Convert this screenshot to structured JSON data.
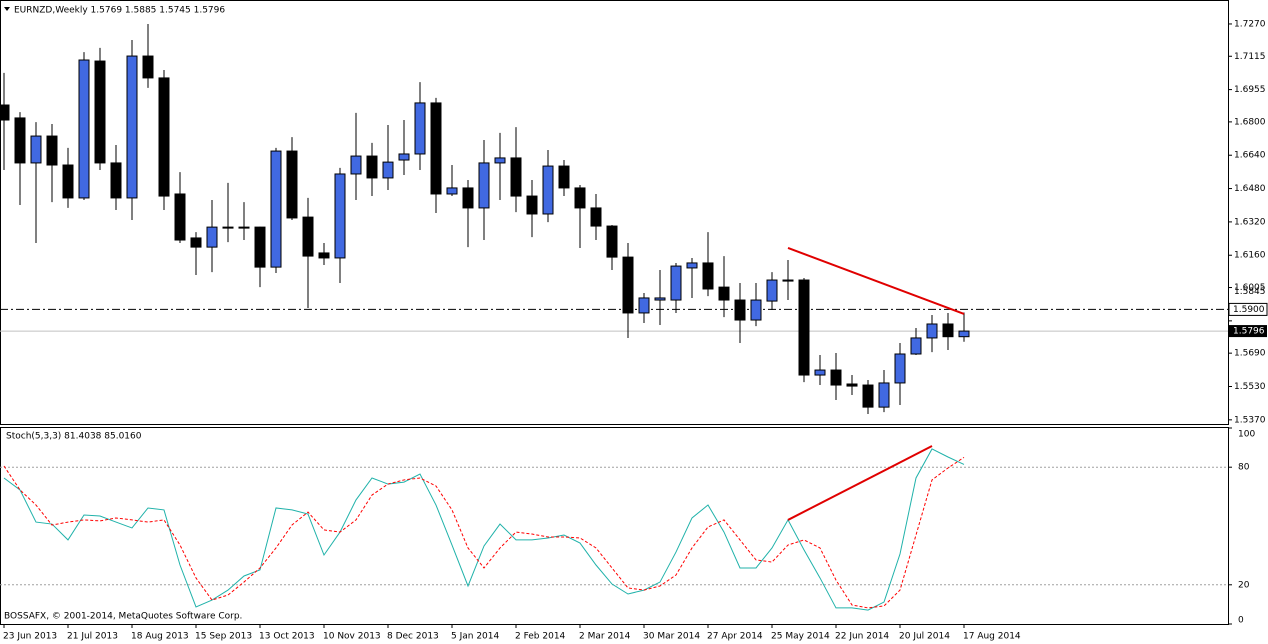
{
  "chart_data": [
    {
      "type": "candlestick",
      "title": "EURNZD,Weekly  1.5769 1.5885 1.5745 1.5796",
      "categories": [
        "23 Jun 2013",
        null,
        null,
        null,
        "21 Jul 2013",
        null,
        null,
        null,
        "18 Aug 2013",
        null,
        null,
        null,
        "15 Sep 2013",
        null,
        null,
        null,
        "13 Oct 2013",
        null,
        null,
        null,
        "10 Nov 2013",
        null,
        null,
        null,
        "8 Dec 2013",
        null,
        null,
        null,
        "5 Jan 2014",
        null,
        null,
        null,
        "2 Feb 2014",
        null,
        null,
        null,
        "2 Mar 2014",
        null,
        null,
        null,
        "30 Mar 2014",
        null,
        null,
        null,
        "27 Apr 2014",
        null,
        null,
        null,
        "25 May 2014",
        null,
        null,
        null,
        "22 Jun 2014",
        null,
        null,
        null,
        "20 Jul 2014",
        null,
        null,
        null,
        "17 Aug 2014"
      ],
      "open": [
        1.6881,
        1.6819,
        1.6603,
        1.6732,
        1.6593,
        1.6435,
        1.7092,
        1.6603,
        1.6435,
        1.7116,
        1.7011,
        1.6454,
        1.6243,
        1.6199,
        1.6291,
        1.6295,
        1.6295,
        1.6103,
        1.666,
        1.6343,
        1.6171,
        1.6147,
        1.655,
        1.6636,
        1.6531,
        1.6617,
        1.6646,
        1.6891,
        1.6454,
        1.6483,
        1.6387,
        1.6603,
        1.6627,
        1.6444,
        1.6358,
        1.6588,
        1.6483,
        1.6387,
        1.63,
        1.6151,
        1.5883,
        1.5945,
        1.5945,
        1.6099,
        1.6123,
        1.6007,
        1.5945,
        1.5849,
        1.594,
        1.6036,
        1.6041,
        1.5585,
        1.5609,
        1.5542,
        1.5537,
        1.5431,
        1.5547,
        1.5686,
        1.5763,
        1.583,
        1.5769
      ],
      "high": [
        1.7035,
        1.6847,
        1.6799,
        1.679,
        1.6675,
        1.7135,
        1.7155,
        1.6689,
        1.7193,
        1.727,
        1.7049,
        1.6559,
        1.6271,
        1.6425,
        1.6507,
        1.6415,
        1.6297,
        1.6675,
        1.6727,
        1.6435,
        1.6219,
        1.6579,
        1.6843,
        1.6699,
        1.6785,
        1.6809,
        1.6991,
        1.6915,
        1.6593,
        1.6521,
        1.6713,
        1.6747,
        1.6775,
        1.6521,
        1.6665,
        1.6617,
        1.6497,
        1.6454,
        1.6305,
        1.6219,
        1.5979,
        1.6089,
        1.6123,
        1.6147,
        1.6271,
        1.6156,
        1.6027,
        1.6027,
        1.6079,
        1.6137,
        1.6051,
        1.5681,
        1.5691,
        1.5585,
        1.5561,
        1.5609,
        1.5739,
        1.5811,
        1.5873,
        1.5883,
        1.5885
      ],
      "low": [
        1.6569,
        1.6401,
        1.6219,
        1.6415,
        1.6387,
        1.6425,
        1.6569,
        1.6377,
        1.6329,
        1.6963,
        1.6377,
        1.6219,
        1.6065,
        1.6079,
        1.6223,
        1.6233,
        1.6007,
        1.6075,
        1.6329,
        1.5907,
        1.6113,
        1.6027,
        1.6425,
        1.6444,
        1.6473,
        1.6545,
        1.6569,
        1.6363,
        1.6444,
        1.6199,
        1.6233,
        1.6425,
        1.6367,
        1.6247,
        1.6319,
        1.6444,
        1.6195,
        1.6233,
        1.6089,
        1.5763,
        1.5835,
        1.5825,
        1.5883,
        1.5955,
        1.5964,
        1.5863,
        1.5739,
        1.582,
        1.5897,
        1.5945,
        1.5551,
        1.5537,
        1.5465,
        1.5489,
        1.5398,
        1.5407,
        1.5441,
        1.5681,
        1.5695,
        1.5705,
        1.5745
      ],
      "close": [
        1.6809,
        1.6603,
        1.6732,
        1.6593,
        1.6435,
        1.7097,
        1.6603,
        1.6435,
        1.7116,
        1.7011,
        1.6444,
        1.6233,
        1.6199,
        1.6295,
        1.6295,
        1.6291,
        1.6103,
        1.666,
        1.6339,
        1.6156,
        1.6147,
        1.655,
        1.6636,
        1.6531,
        1.6607,
        1.6646,
        1.6891,
        1.6454,
        1.6483,
        1.6387,
        1.6603,
        1.6627,
        1.6444,
        1.6358,
        1.6588,
        1.6483,
        1.6387,
        1.63,
        1.6151,
        1.5883,
        1.5955,
        1.5955,
        1.6108,
        1.6123,
        1.5998,
        1.5945,
        1.5849,
        1.5945,
        1.6041,
        1.6041,
        1.5585,
        1.5609,
        1.5537,
        1.5532,
        1.5431,
        1.5547,
        1.5686,
        1.5763,
        1.583,
        1.5769,
        1.5796
      ],
      "up_color": "#4169e1",
      "down_color": "#000000",
      "ylim": [
        1.535,
        1.7385
      ],
      "yticks": [
        {
          "value": 1.727,
          "label": "1.7270"
        },
        1.7115,
        1.6955,
        {
          "value": 1.68,
          "label": "1.6800"
        },
        {
          "value": 1.664,
          "label": "1.6640"
        },
        {
          "value": 1.648,
          "label": "1.6480"
        },
        {
          "value": 1.632,
          "label": "1.6320"
        },
        {
          "value": 1.616,
          "label": "1.6160"
        },
        1.6005,
        1.5845,
        {
          "value": 1.569,
          "label": "1.5690"
        },
        {
          "value": 1.553,
          "label": "1.5530"
        },
        {
          "value": 1.537,
          "label": "1.5370"
        }
      ],
      "hlines": [
        {
          "value": 1.59,
          "label": "1.5900"
        }
      ],
      "last_price": {
        "value": 1.5796,
        "label": "1.5796"
      },
      "trendlines": [
        {
          "x": [
            49,
            60
          ],
          "y": [
            1.6195,
            1.5878
          ],
          "color": "#e00000"
        }
      ]
    },
    {
      "type": "line",
      "title": "Stoch(5,3,3) 81.4038 85.0160",
      "series": [
        {
          "color": "#20b2aa",
          "values": [
            74.5,
            68.4,
            52.0,
            51.0,
            42.9,
            55.6,
            55.1,
            52.0,
            49.0,
            59.2,
            58.2,
            30.1,
            8.7,
            12.2,
            17.3,
            24.5,
            27.6,
            59.2,
            58.2,
            56.1,
            35.2,
            46.9,
            63.3,
            74.5,
            71.4,
            72.4,
            76.5,
            60.7,
            40.3,
            19.4,
            39.8,
            51.0,
            42.9,
            42.9,
            43.9,
            45.4,
            41.3,
            30.1,
            20.4,
            15.3,
            17.3,
            21.4,
            36.7,
            54.1,
            60.7,
            46.9,
            28.6,
            28.6,
            38.8,
            53.1,
            37.8,
            23.5,
            8.2,
            8.2,
            7.1,
            11.2,
            35.7,
            74.5,
            89.3,
            85.2,
            81.4038
          ]
        },
        {
          "color": "#ff0000",
          "dashed": true,
          "values": [
            80.6,
            68.4,
            60.7,
            50.5,
            52.0,
            53.1,
            52.6,
            54.1,
            53.1,
            52.0,
            53.1,
            40.3,
            23.5,
            12.2,
            14.8,
            21.4,
            28.6,
            38.8,
            50.5,
            57.1,
            48.0,
            46.9,
            53.1,
            65.8,
            71.4,
            73.5,
            74.5,
            70.4,
            58.2,
            38.8,
            28.6,
            38.8,
            46.9,
            45.9,
            44.4,
            44.4,
            43.9,
            38.8,
            28.6,
            18.4,
            17.3,
            19.4,
            25.0,
            38.8,
            49.5,
            53.1,
            42.9,
            32.7,
            31.6,
            40.3,
            42.9,
            38.8,
            22.4,
            9.7,
            8.2,
            9.2,
            17.3,
            45.4,
            73.5,
            79.6,
            85.016
          ]
        }
      ],
      "ylim": [
        0,
        100
      ],
      "yticks": [
        0,
        20,
        80,
        100
      ],
      "grid": true,
      "trendlines": [
        {
          "x": [
            49,
            58
          ],
          "y": [
            53.1,
            90.8
          ],
          "color": "#e00000"
        }
      ],
      "footer": "BOSSAFX, © 2001-2014, MetaQuotes Software Corp."
    }
  ]
}
